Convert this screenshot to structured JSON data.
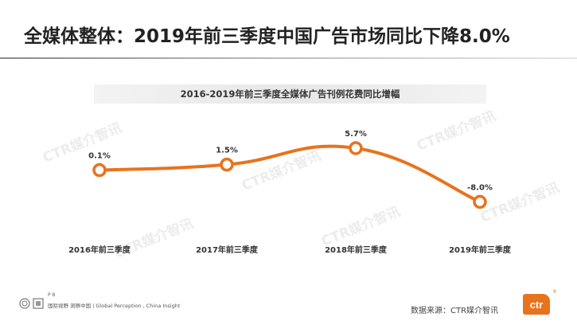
{
  "page": {
    "title": "全媒体整体：2019年前三季度中国广告市场同比下降8.0%",
    "page_number": "P 8",
    "footer_tagline": "国际视野  洞察中国 | Global Perception , China Insight",
    "source": "数据来源：CTR媒介智讯",
    "brand_logo_text": "ctr",
    "brand_reg": "®",
    "watermark_text": "CTR媒介智讯",
    "accent_color": "#e8731d"
  },
  "chart_data": {
    "type": "line",
    "title": "2016-2019年前三季度全媒体广告刊例花费同比增幅",
    "categories": [
      "2016年前三季度",
      "2017年前三季度",
      "2018年前三季度",
      "2019年前三季度"
    ],
    "series": [
      {
        "values": [
          0.1,
          1.5,
          5.7,
          -8.0
        ],
        "labels": [
          "0.1%",
          "1.5%",
          "5.7%",
          "-8.0%"
        ],
        "color": "#e8731d"
      }
    ],
    "ylim": [
      -10,
      8
    ],
    "grid": false,
    "legend": "none",
    "smooth": true
  }
}
